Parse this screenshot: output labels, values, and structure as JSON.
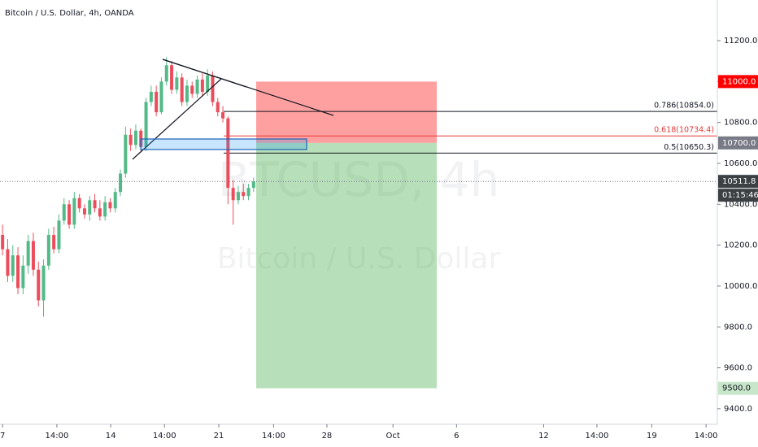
{
  "chart_data": {
    "type": "candlestick",
    "title": "Bitcoin / U.S. Dollar, 4h, OANDA",
    "watermark": [
      "BTCUSD, 4h",
      "Bitcoin / U.S. Dollar"
    ],
    "up_color": "#53b987",
    "down_color": "#eb4d5c",
    "open": [
      10250,
      10180,
      10050,
      10150,
      9990,
      10100,
      10220,
      10080,
      9930,
      10100,
      10250,
      10180,
      10320,
      10400,
      10300,
      10430,
      10380,
      10350,
      10420,
      10380,
      10340,
      10410,
      10380,
      10460,
      10550,
      10740,
      10690,
      10760,
      10680,
      10900,
      10950,
      10850,
      11000,
      11080,
      10960,
      11020,
      10900,
      10980,
      10940,
      11010,
      10950,
      11030,
      10900,
      10850,
      10820,
      10480,
      10420,
      10460,
      10440,
      10480
    ],
    "high": [
      10300,
      10230,
      10200,
      10190,
      10150,
      10250,
      10260,
      10120,
      10130,
      10280,
      10290,
      10350,
      10430,
      10420,
      10460,
      10450,
      10400,
      10440,
      10450,
      10420,
      10440,
      10430,
      10480,
      10570,
      10780,
      10770,
      10790,
      10770,
      10920,
      10980,
      10980,
      11020,
      11120,
      11100,
      11050,
      11040,
      11010,
      11000,
      11030,
      11040,
      11060,
      11050,
      10920,
      10880,
      10830,
      10520,
      10490,
      10500,
      10500,
      10530
    ],
    "low": [
      10150,
      10020,
      10020,
      9960,
      9960,
      10060,
      10050,
      9900,
      9850,
      10080,
      10160,
      10160,
      10300,
      10280,
      10280,
      10360,
      10330,
      10320,
      10360,
      10320,
      10320,
      10360,
      10360,
      10440,
      10530,
      10660,
      10670,
      10660,
      10660,
      10880,
      10830,
      10840,
      10980,
      10940,
      10940,
      10880,
      10880,
      10920,
      10920,
      10930,
      10930,
      10880,
      10830,
      10800,
      10400,
      10300,
      10400,
      10420,
      10420,
      10460
    ],
    "close": [
      10180,
      10050,
      10150,
      9990,
      10100,
      10220,
      10080,
      9930,
      10100,
      10250,
      10180,
      10320,
      10400,
      10300,
      10430,
      10380,
      10350,
      10420,
      10380,
      10340,
      10410,
      10380,
      10460,
      10550,
      10740,
      10690,
      10760,
      10680,
      10900,
      10950,
      10850,
      11000,
      11080,
      10960,
      11020,
      10900,
      10980,
      10940,
      11010,
      10950,
      11030,
      10900,
      10850,
      10820,
      10480,
      10420,
      10460,
      10440,
      10480,
      10511.8
    ],
    "xlim": [
      -0.5,
      139.5
    ],
    "xticks": [
      {
        "value": 0,
        "label": "7"
      },
      {
        "value": 10.6,
        "label": "14:00"
      },
      {
        "value": 21.1,
        "label": "14"
      },
      {
        "value": 31.6,
        "label": "14:00"
      },
      {
        "value": 42.2,
        "label": "21"
      },
      {
        "value": 52.9,
        "label": "14:00"
      },
      {
        "value": 63.3,
        "label": "28"
      },
      {
        "value": 76.2,
        "label": "Oct"
      },
      {
        "value": 88.6,
        "label": "6"
      },
      {
        "value": 105.6,
        "label": "12"
      },
      {
        "value": 116,
        "label": "14:00"
      },
      {
        "value": 126.7,
        "label": "19"
      },
      {
        "value": 137.3,
        "label": "14:00"
      }
    ],
    "ylim": [
      9324,
      11399
    ],
    "yticks": [
      {
        "value": 9400,
        "label": "9400.0"
      },
      {
        "value": 9600,
        "label": "9600.0"
      },
      {
        "value": 9800,
        "label": "9800.0"
      },
      {
        "value": 10000,
        "label": "10000.0"
      },
      {
        "value": 10200,
        "label": "10200.0"
      },
      {
        "value": 10400,
        "label": "10400.0"
      },
      {
        "value": 10600,
        "label": "10600.0"
      },
      {
        "value": 10800,
        "label": "10800.0"
      },
      {
        "value": 11000,
        "label": "11000.0"
      },
      {
        "value": 11200,
        "label": "11200.0"
      }
    ],
    "fib_levels": [
      {
        "value": 10854.0,
        "label": "0.786(10854.0)",
        "color": "#131722"
      },
      {
        "value": 10734.4,
        "label": "0.618(10734.4)",
        "color": "#e53935"
      },
      {
        "value": 10650.3,
        "label": "0.5(10650.3)",
        "color": "#131722"
      }
    ],
    "price_tags": [
      {
        "value": 11000,
        "label": "11000.0",
        "color": "#ff0000",
        "text_color": "#ffffff"
      },
      {
        "value": 10700,
        "label": "10700.0",
        "color": "#787b86",
        "text_color": "#ffffff"
      },
      {
        "value": 10511.8,
        "label": "10511.8",
        "color": "#3c4043",
        "text_color": "#ffffff"
      },
      {
        "value": 9500,
        "label": "9500.0",
        "color": "#c8e6c9",
        "text_color": "#131722"
      }
    ],
    "countdown": "01:15:46"
  }
}
